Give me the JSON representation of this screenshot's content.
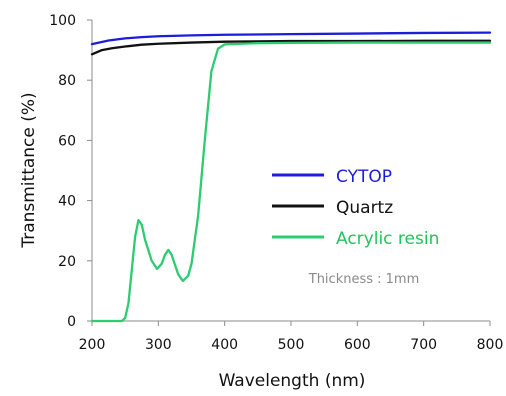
{
  "chart_data": {
    "type": "line",
    "xlabel": "Wavelength (nm)",
    "ylabel": "Transmittance  (%)",
    "xlim": [
      200,
      800
    ],
    "ylim": [
      0,
      100
    ],
    "x_ticks": [
      200,
      300,
      400,
      500,
      600,
      700,
      800
    ],
    "y_ticks": [
      0,
      20,
      40,
      60,
      80,
      100
    ],
    "grid": false,
    "legend_position": "right",
    "annotation": "Thickness : 1mm",
    "series": [
      {
        "name": "CYTOP",
        "color": "#1c1cdc",
        "legend_text_color": "#1c1cdc",
        "points": [
          [
            200,
            92.0
          ],
          [
            225,
            93.2
          ],
          [
            250,
            93.9
          ],
          [
            275,
            94.3
          ],
          [
            300,
            94.6
          ],
          [
            350,
            94.9
          ],
          [
            400,
            95.1
          ],
          [
            500,
            95.3
          ],
          [
            600,
            95.5
          ],
          [
            700,
            95.7
          ],
          [
            800,
            95.8
          ]
        ]
      },
      {
        "name": "Quartz",
        "color": "#111111",
        "legend_text_color": "#111111",
        "points": [
          [
            200,
            88.6
          ],
          [
            215,
            90.0
          ],
          [
            230,
            90.6
          ],
          [
            250,
            91.2
          ],
          [
            275,
            91.8
          ],
          [
            300,
            92.1
          ],
          [
            350,
            92.5
          ],
          [
            400,
            92.8
          ],
          [
            500,
            93.0
          ],
          [
            600,
            93.0
          ],
          [
            700,
            93.1
          ],
          [
            800,
            93.1
          ]
        ]
      },
      {
        "name": "Acrylic resin",
        "color": "#2ecc71",
        "legend_text_color": "#21c45c",
        "points": [
          [
            200,
            0
          ],
          [
            245,
            0
          ],
          [
            250,
            1
          ],
          [
            255,
            6
          ],
          [
            260,
            17
          ],
          [
            265,
            28
          ],
          [
            270,
            33.5
          ],
          [
            275,
            32
          ],
          [
            280,
            27
          ],
          [
            290,
            20
          ],
          [
            298,
            17.3
          ],
          [
            305,
            19
          ],
          [
            310,
            22
          ],
          [
            315,
            23.6
          ],
          [
            320,
            22
          ],
          [
            330,
            15.5
          ],
          [
            337,
            13.3
          ],
          [
            345,
            15
          ],
          [
            350,
            19
          ],
          [
            360,
            35
          ],
          [
            370,
            60
          ],
          [
            380,
            83
          ],
          [
            390,
            90.5
          ],
          [
            400,
            91.9
          ],
          [
            450,
            92.3
          ],
          [
            500,
            92.4
          ],
          [
            600,
            92.5
          ],
          [
            700,
            92.5
          ],
          [
            800,
            92.5
          ]
        ]
      }
    ]
  }
}
